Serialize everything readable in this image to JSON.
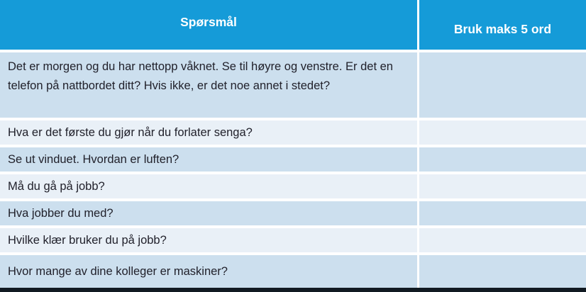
{
  "table": {
    "header": {
      "question_col": "Spørsmål",
      "answer_col": "Bruk maks 5 ord"
    },
    "rows": [
      {
        "question": "Det er morgen og du har nettopp våknet. Se til høyre og venstre. Er det en telefon på nattbordet ditt? Hvis ikke, er det noe annet i stedet?",
        "answer": ""
      },
      {
        "question": "Hva er det første du gjør når du forlater senga?",
        "answer": ""
      },
      {
        "question": "Se ut vinduet. Hvordan er luften?",
        "answer": ""
      },
      {
        "question": "Må du gå på jobb?",
        "answer": ""
      },
      {
        "question": "Hva jobber du med?",
        "answer": ""
      },
      {
        "question": "Hvilke klær bruker du på jobb?",
        "answer": ""
      },
      {
        "question": "Hvor mange av dine kolleger er maskiner?",
        "answer": ""
      }
    ]
  },
  "colors": {
    "header_bg": "#159BD8",
    "header_text": "#FFFFFF",
    "row_medium": "#CCDFEE",
    "row_light": "#E9F0F7",
    "separator": "#FFFFFF",
    "bottom_border": "#111A22",
    "question_text": "#21212B"
  }
}
